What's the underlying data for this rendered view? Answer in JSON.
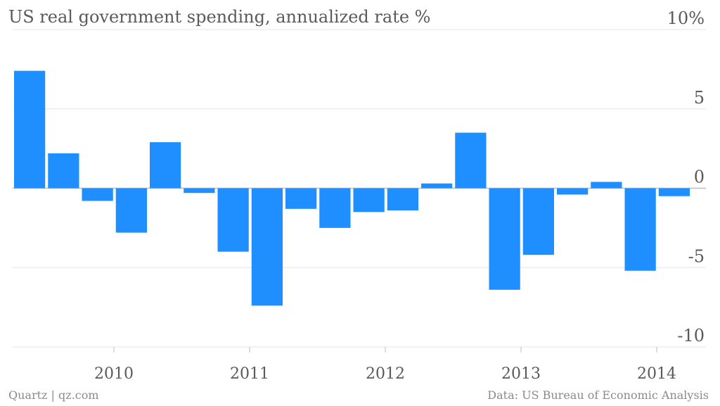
{
  "chart_data": {
    "type": "bar",
    "title": "US real government spending, annualized rate %",
    "source": "Data: US Bureau of Economic Analysis",
    "credit": "Quartz | qz.com",
    "bar_color": "#1f8fff",
    "grid_color": "#e5e5e5",
    "axis_color": "#bdbdbd",
    "ylim": [
      -10,
      10
    ],
    "yticks": [
      10,
      5,
      0,
      -5,
      -10
    ],
    "ytick_labels": [
      "10%",
      "5",
      "0",
      "-5",
      "-10"
    ],
    "xticks": [
      "2010",
      "2011",
      "2012",
      "2013",
      "2014"
    ],
    "values": [
      7.4,
      2.2,
      -0.8,
      -2.8,
      2.9,
      -0.3,
      -4.0,
      -7.4,
      -1.3,
      -2.5,
      -1.5,
      -1.4,
      0.3,
      3.5,
      -6.4,
      -4.2,
      -0.4,
      0.4,
      -5.2,
      -0.5
    ]
  }
}
